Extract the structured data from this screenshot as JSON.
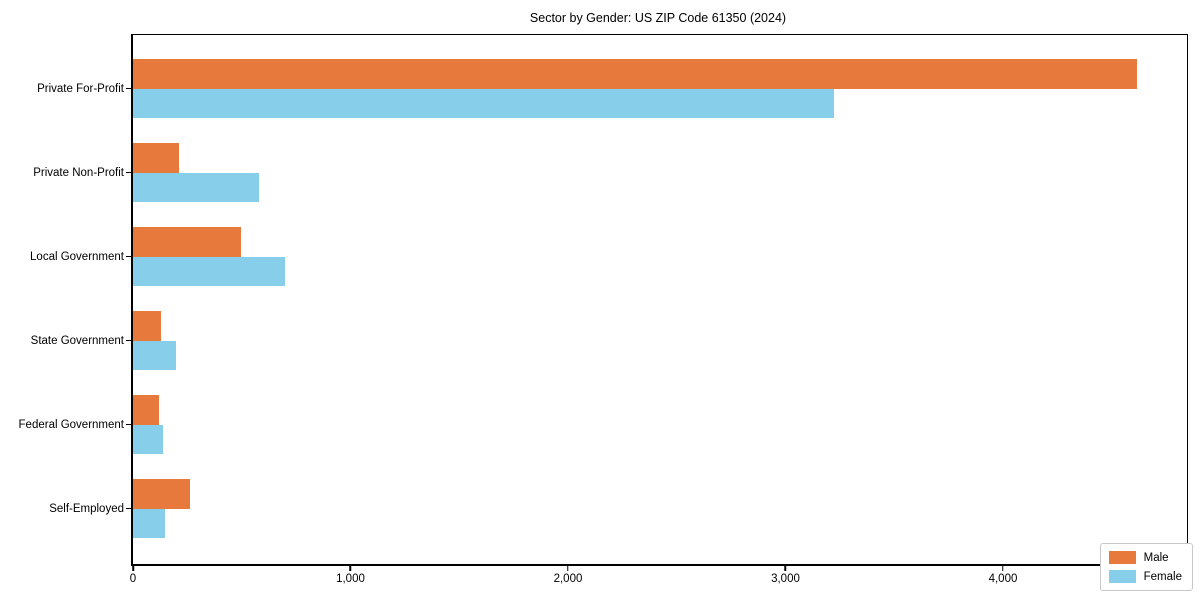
{
  "title": "Sector by Gender: US ZIP Code 61350 (2024)",
  "colors": {
    "male": "#e8793d",
    "female": "#87ceeb",
    "axis": "#000000",
    "legend_border": "#c8c8c8",
    "background": "#ffffff"
  },
  "legend": {
    "position": "lower right",
    "items": [
      {
        "label": "Male",
        "color": "#e8793d"
      },
      {
        "label": "Female",
        "color": "#87ceeb"
      }
    ]
  },
  "x_axis": {
    "ticks": [
      {
        "value": 0,
        "label": "0"
      },
      {
        "value": 1000,
        "label": "1,000"
      },
      {
        "value": 2000,
        "label": "2,000"
      },
      {
        "value": 3000,
        "label": "3,000"
      },
      {
        "value": 4000,
        "label": "4,000"
      }
    ]
  },
  "chart_data": {
    "type": "bar",
    "orientation": "horizontal",
    "title": "Sector by Gender: US ZIP Code 61350 (2024)",
    "categories": [
      "Private For-Profit",
      "Private Non-Profit",
      "Local Government",
      "State Government",
      "Federal Government",
      "Self-Employed"
    ],
    "series": [
      {
        "name": "Male",
        "color": "#e8793d",
        "values": [
          4615,
          210,
          495,
          130,
          118,
          260
        ]
      },
      {
        "name": "Female",
        "color": "#87ceeb",
        "values": [
          3225,
          580,
          700,
          200,
          136,
          148
        ]
      }
    ],
    "xlabel": "",
    "ylabel": "",
    "xlim": [
      0,
      4846
    ],
    "grid": false,
    "legend_position": "lower right"
  }
}
